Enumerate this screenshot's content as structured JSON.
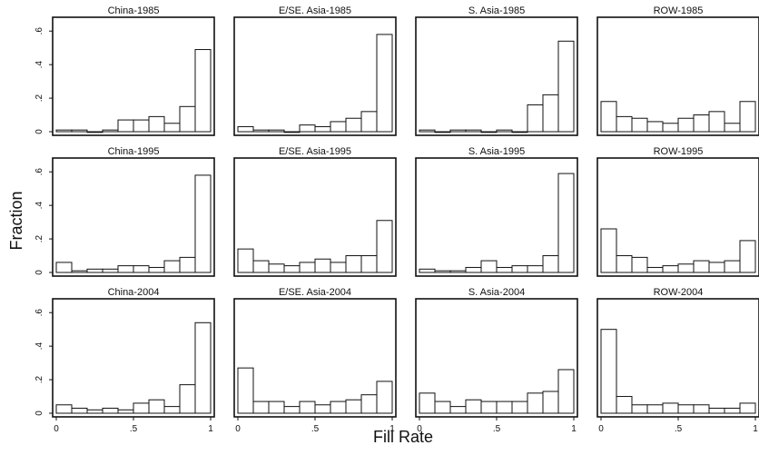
{
  "figure": {
    "ylabel": "Fraction",
    "xlabel": "Fill Rate",
    "ytick_labels": [
      "0",
      ".2",
      ".4",
      ".6"
    ],
    "xtick_labels": [
      "0",
      ".5",
      "1"
    ],
    "colors": {
      "bar_fill": "#ffffff",
      "bar_stroke": "#111111",
      "frame": "#111111"
    }
  },
  "chart_data": [
    {
      "type": "bar",
      "title": "China-1985",
      "ylim": [
        0,
        0.65
      ],
      "xlim": [
        0,
        1
      ],
      "bin_width": 0.1,
      "values": [
        0.01,
        0.01,
        0.0,
        0.01,
        0.07,
        0.07,
        0.09,
        0.05,
        0.15,
        0.49
      ]
    },
    {
      "type": "bar",
      "title": "E/SE. Asia-1985",
      "ylim": [
        0,
        0.65
      ],
      "xlim": [
        0,
        1
      ],
      "bin_width": 0.1,
      "values": [
        0.03,
        0.01,
        0.01,
        0.0,
        0.04,
        0.03,
        0.06,
        0.08,
        0.12,
        0.58
      ]
    },
    {
      "type": "bar",
      "title": "S. Asia-1985",
      "ylim": [
        0,
        0.65
      ],
      "xlim": [
        0,
        1
      ],
      "bin_width": 0.1,
      "values": [
        0.01,
        0.0,
        0.01,
        0.01,
        0.0,
        0.01,
        0.0,
        0.16,
        0.22,
        0.54
      ]
    },
    {
      "type": "bar",
      "title": "ROW-1985",
      "ylim": [
        0,
        0.65
      ],
      "xlim": [
        0,
        1
      ],
      "bin_width": 0.1,
      "values": [
        0.18,
        0.09,
        0.08,
        0.06,
        0.05,
        0.08,
        0.1,
        0.12,
        0.05,
        0.18
      ]
    },
    {
      "type": "bar",
      "title": "China-1995",
      "ylim": [
        0,
        0.65
      ],
      "xlim": [
        0,
        1
      ],
      "bin_width": 0.1,
      "values": [
        0.06,
        0.01,
        0.02,
        0.02,
        0.04,
        0.04,
        0.03,
        0.07,
        0.09,
        0.58
      ]
    },
    {
      "type": "bar",
      "title": "E/SE. Asia-1995",
      "ylim": [
        0,
        0.65
      ],
      "xlim": [
        0,
        1
      ],
      "bin_width": 0.1,
      "values": [
        0.14,
        0.07,
        0.05,
        0.04,
        0.06,
        0.08,
        0.06,
        0.1,
        0.1,
        0.31
      ]
    },
    {
      "type": "bar",
      "title": "S. Asia-1995",
      "ylim": [
        0,
        0.65
      ],
      "xlim": [
        0,
        1
      ],
      "bin_width": 0.1,
      "values": [
        0.02,
        0.01,
        0.01,
        0.03,
        0.07,
        0.03,
        0.04,
        0.04,
        0.1,
        0.59
      ]
    },
    {
      "type": "bar",
      "title": "ROW-1995",
      "ylim": [
        0,
        0.65
      ],
      "xlim": [
        0,
        1
      ],
      "bin_width": 0.1,
      "values": [
        0.26,
        0.1,
        0.09,
        0.03,
        0.04,
        0.05,
        0.07,
        0.06,
        0.07,
        0.19
      ]
    },
    {
      "type": "bar",
      "title": "China-2004",
      "ylim": [
        0,
        0.65
      ],
      "xlim": [
        0,
        1
      ],
      "bin_width": 0.1,
      "values": [
        0.05,
        0.03,
        0.02,
        0.03,
        0.02,
        0.06,
        0.08,
        0.04,
        0.17,
        0.54
      ]
    },
    {
      "type": "bar",
      "title": "E/SE. Asia-2004",
      "ylim": [
        0,
        0.65
      ],
      "xlim": [
        0,
        1
      ],
      "bin_width": 0.1,
      "values": [
        0.27,
        0.07,
        0.07,
        0.04,
        0.07,
        0.05,
        0.07,
        0.08,
        0.11,
        0.19
      ]
    },
    {
      "type": "bar",
      "title": "S. Asia-2004",
      "ylim": [
        0,
        0.65
      ],
      "xlim": [
        0,
        1
      ],
      "bin_width": 0.1,
      "values": [
        0.12,
        0.07,
        0.04,
        0.08,
        0.07,
        0.07,
        0.07,
        0.12,
        0.13,
        0.26
      ]
    },
    {
      "type": "bar",
      "title": "ROW-2004",
      "ylim": [
        0,
        0.65
      ],
      "xlim": [
        0,
        1
      ],
      "bin_width": 0.1,
      "values": [
        0.5,
        0.1,
        0.05,
        0.05,
        0.06,
        0.05,
        0.05,
        0.03,
        0.03,
        0.06
      ]
    }
  ]
}
